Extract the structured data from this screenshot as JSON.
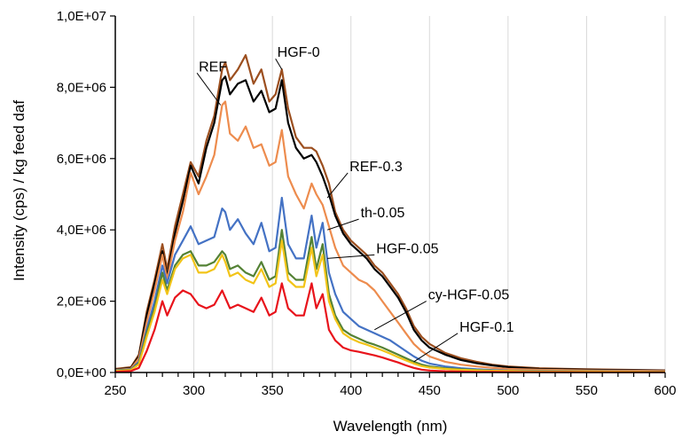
{
  "chart_data": {
    "type": "line",
    "title": "",
    "xlabel": "Wavelength (nm)",
    "ylabel": "Intensity (cps) / kg feed daf",
    "xlim": [
      250,
      600
    ],
    "ylim": [
      0,
      10000000
    ],
    "x_ticks": [
      250,
      300,
      350,
      400,
      450,
      500,
      550,
      600
    ],
    "y_ticks": [
      0,
      2000000,
      4000000,
      6000000,
      8000000,
      10000000
    ],
    "x_tick_labels": [
      "250",
      "300",
      "350",
      "400",
      "450",
      "500",
      "550",
      "600"
    ],
    "y_tick_labels": [
      "0,0E+00",
      "2,0E+06",
      "4,0E+06",
      "6,0E+06",
      "8,0E+06",
      "1,0E+07"
    ],
    "grid": {
      "x": true,
      "y": false
    },
    "legend": "none (series labelled by callouts)",
    "series": [
      {
        "name": "HGF-0",
        "color": "#9c4f1f",
        "x": [
          250,
          260,
          265,
          270,
          275,
          280,
          283,
          288,
          293,
          298,
          303,
          308,
          313,
          318,
          320,
          323,
          328,
          333,
          338,
          343,
          348,
          352,
          356,
          360,
          365,
          370,
          375,
          378,
          382,
          386,
          390,
          395,
          400,
          405,
          410,
          415,
          420,
          425,
          430,
          435,
          440,
          445,
          450,
          460,
          470,
          480,
          490,
          500,
          520,
          550,
          600
        ],
        "y": [
          100000,
          150000,
          500000,
          1700000,
          2600000,
          3600000,
          2900000,
          4100000,
          5000000,
          5900000,
          5500000,
          6500000,
          7200000,
          8500000,
          8700000,
          8200000,
          8500000,
          8900000,
          8100000,
          8500000,
          7600000,
          7800000,
          8500000,
          7400000,
          6600000,
          6300000,
          6300000,
          6200000,
          5800000,
          5300000,
          4500000,
          4000000,
          3700000,
          3500000,
          3300000,
          3000000,
          2800000,
          2500000,
          2200000,
          1800000,
          1300000,
          1000000,
          800000,
          550000,
          400000,
          300000,
          220000,
          170000,
          120000,
          90000,
          60000
        ]
      },
      {
        "name": "REF",
        "color": "#000000",
        "x": [
          250,
          260,
          265,
          270,
          275,
          280,
          283,
          288,
          293,
          298,
          303,
          308,
          313,
          318,
          320,
          323,
          328,
          333,
          338,
          343,
          348,
          352,
          356,
          360,
          365,
          370,
          375,
          378,
          382,
          386,
          390,
          395,
          400,
          405,
          410,
          415,
          420,
          425,
          430,
          435,
          440,
          445,
          450,
          460,
          470,
          480,
          490,
          500,
          520,
          550,
          600
        ],
        "y": [
          80000,
          130000,
          450000,
          1600000,
          2500000,
          3400000,
          2700000,
          3900000,
          4800000,
          5800000,
          5300000,
          6300000,
          7000000,
          8200000,
          8300000,
          7800000,
          8100000,
          8200000,
          7600000,
          7900000,
          7300000,
          7400000,
          8200000,
          7000000,
          6300000,
          6000000,
          6100000,
          5900000,
          5500000,
          5000000,
          4400000,
          3900000,
          3600000,
          3400000,
          3200000,
          2900000,
          2700000,
          2400000,
          2100000,
          1700000,
          1200000,
          900000,
          700000,
          500000,
          350000,
          260000,
          200000,
          150000,
          100000,
          80000,
          50000
        ]
      },
      {
        "name": "REF-0.3",
        "color": "#ed8c4e",
        "x": [
          250,
          260,
          265,
          270,
          275,
          280,
          283,
          288,
          293,
          298,
          303,
          308,
          313,
          318,
          320,
          323,
          328,
          333,
          338,
          343,
          348,
          352,
          356,
          360,
          365,
          370,
          375,
          378,
          382,
          386,
          390,
          395,
          400,
          405,
          410,
          415,
          420,
          425,
          430,
          435,
          440,
          445,
          450,
          460,
          470,
          480,
          490,
          500,
          520,
          550,
          600
        ],
        "y": [
          70000,
          110000,
          400000,
          1400000,
          2300000,
          3300000,
          2600000,
          3700000,
          4500000,
          5600000,
          5000000,
          5500000,
          6100000,
          7500000,
          7600000,
          6700000,
          6500000,
          6900000,
          6300000,
          6400000,
          5800000,
          5900000,
          6800000,
          5500000,
          5000000,
          4600000,
          5300000,
          5000000,
          4700000,
          4100000,
          3500000,
          3000000,
          2800000,
          2600000,
          2500000,
          2300000,
          2000000,
          1700000,
          1400000,
          1100000,
          800000,
          600000,
          450000,
          300000,
          220000,
          170000,
          130000,
          100000,
          80000,
          60000,
          40000
        ]
      },
      {
        "name": "th-0.05",
        "color": "#4472c4",
        "x": [
          250,
          260,
          265,
          270,
          275,
          280,
          283,
          288,
          293,
          298,
          303,
          308,
          313,
          318,
          320,
          323,
          328,
          333,
          338,
          343,
          348,
          352,
          356,
          360,
          365,
          370,
          375,
          378,
          382,
          386,
          390,
          395,
          400,
          405,
          410,
          415,
          420,
          425,
          430,
          435,
          440,
          445,
          450,
          460,
          470,
          480,
          490,
          500,
          520,
          550,
          600
        ],
        "y": [
          60000,
          90000,
          300000,
          1200000,
          2000000,
          3000000,
          2500000,
          3300000,
          3700000,
          4100000,
          3600000,
          3700000,
          3800000,
          4600000,
          4500000,
          4000000,
          4300000,
          3900000,
          3600000,
          4200000,
          3400000,
          3500000,
          4900000,
          3600000,
          3200000,
          3200000,
          4400000,
          3500000,
          4200000,
          2800000,
          2200000,
          1700000,
          1500000,
          1300000,
          1200000,
          1100000,
          1000000,
          900000,
          750000,
          600000,
          450000,
          330000,
          250000,
          170000,
          120000,
          90000,
          70000,
          55000,
          45000,
          35000,
          25000
        ]
      },
      {
        "name": "HGF-0.05",
        "color": "#548235",
        "x": [
          250,
          260,
          265,
          270,
          275,
          280,
          283,
          288,
          293,
          298,
          303,
          308,
          313,
          318,
          320,
          323,
          328,
          333,
          338,
          343,
          348,
          352,
          356,
          360,
          365,
          370,
          375,
          378,
          382,
          386,
          390,
          395,
          400,
          405,
          410,
          415,
          420,
          425,
          430,
          435,
          440,
          445,
          450,
          460,
          470,
          480,
          490,
          500,
          520,
          550,
          600
        ],
        "y": [
          50000,
          80000,
          260000,
          1100000,
          1800000,
          2800000,
          2300000,
          3000000,
          3300000,
          3400000,
          3000000,
          3000000,
          3100000,
          3400000,
          3300000,
          2900000,
          3000000,
          2800000,
          2700000,
          3100000,
          2600000,
          2700000,
          4000000,
          2800000,
          2600000,
          2600000,
          3800000,
          2900000,
          3600000,
          2200000,
          1600000,
          1200000,
          1050000,
          950000,
          850000,
          780000,
          700000,
          600000,
          500000,
          400000,
          300000,
          220000,
          170000,
          120000,
          90000,
          70000,
          55000,
          45000,
          35000,
          28000,
          20000
        ]
      },
      {
        "name": "cy-HGF-0.05",
        "color": "#f2c418",
        "x": [
          250,
          260,
          265,
          270,
          275,
          280,
          283,
          288,
          293,
          298,
          303,
          308,
          313,
          318,
          320,
          323,
          328,
          333,
          338,
          343,
          348,
          352,
          356,
          360,
          365,
          370,
          375,
          378,
          382,
          386,
          390,
          395,
          400,
          405,
          410,
          415,
          420,
          425,
          430,
          435,
          440,
          445,
          450,
          460,
          470,
          480,
          490,
          500,
          520,
          550,
          600
        ],
        "y": [
          45000,
          70000,
          230000,
          1000000,
          1700000,
          2600000,
          2200000,
          2900000,
          3200000,
          3300000,
          2800000,
          2800000,
          2900000,
          3300000,
          3100000,
          2700000,
          2800000,
          2600000,
          2500000,
          2900000,
          2400000,
          2500000,
          3700000,
          2600000,
          2400000,
          2400000,
          3500000,
          2700000,
          3300000,
          2000000,
          1500000,
          1100000,
          950000,
          850000,
          780000,
          700000,
          620000,
          530000,
          430000,
          340000,
          250000,
          180000,
          140000,
          100000,
          75000,
          60000,
          48000,
          40000,
          30000,
          24000,
          18000
        ]
      },
      {
        "name": "HGF-0.1",
        "color": "#e8131b",
        "x": [
          250,
          260,
          265,
          270,
          275,
          280,
          283,
          288,
          293,
          298,
          303,
          308,
          313,
          318,
          320,
          323,
          328,
          333,
          338,
          343,
          348,
          352,
          356,
          360,
          365,
          370,
          375,
          378,
          382,
          386,
          390,
          395,
          400,
          405,
          410,
          415,
          420,
          425,
          430,
          435,
          440,
          445,
          450,
          460,
          470,
          480,
          490,
          500,
          520,
          550,
          600
        ],
        "y": [
          20000,
          40000,
          130000,
          600000,
          1200000,
          2000000,
          1600000,
          2100000,
          2300000,
          2200000,
          1900000,
          1800000,
          1900000,
          2300000,
          2100000,
          1800000,
          1900000,
          1800000,
          1700000,
          2100000,
          1600000,
          1700000,
          2500000,
          1800000,
          1600000,
          1600000,
          2500000,
          1800000,
          2200000,
          1200000,
          900000,
          700000,
          620000,
          580000,
          530000,
          480000,
          420000,
          350000,
          280000,
          200000,
          130000,
          80000,
          55000,
          35000,
          25000,
          18000,
          14000,
          10000,
          8000,
          6000,
          4000
        ]
      }
    ],
    "annotations": [
      {
        "text": "HGF-0",
        "series": "HGF-0",
        "label_x": 352,
        "label_y": 8800000,
        "point_x": 356,
        "point_y": 8500000
      },
      {
        "text": "REF",
        "series": "REF",
        "label_x": 302,
        "label_y": 8400000,
        "point_x": 317,
        "point_y": 7500000
      },
      {
        "text": "REF-0.3",
        "series": "REF-0.3",
        "label_x": 398,
        "label_y": 5600000,
        "point_x": 385,
        "point_y": 4900000
      },
      {
        "text": "th-0.05",
        "series": "th-0.05",
        "label_x": 405,
        "label_y": 4300000,
        "point_x": 385,
        "point_y": 4000000
      },
      {
        "text": "HGF-0.05",
        "series": "HGF-0.05",
        "label_x": 415,
        "label_y": 3300000,
        "point_x": 385,
        "point_y": 3200000
      },
      {
        "text": "cy-HGF-0.05",
        "series": "cy-HGF-0.05",
        "label_x": 448,
        "label_y": 2000000,
        "point_x": 415,
        "point_y": 1200000
      },
      {
        "text": "HGF-0.1",
        "series": "HGF-0.1",
        "label_x": 468,
        "label_y": 1100000,
        "point_x": 440,
        "point_y": 300000
      }
    ]
  }
}
